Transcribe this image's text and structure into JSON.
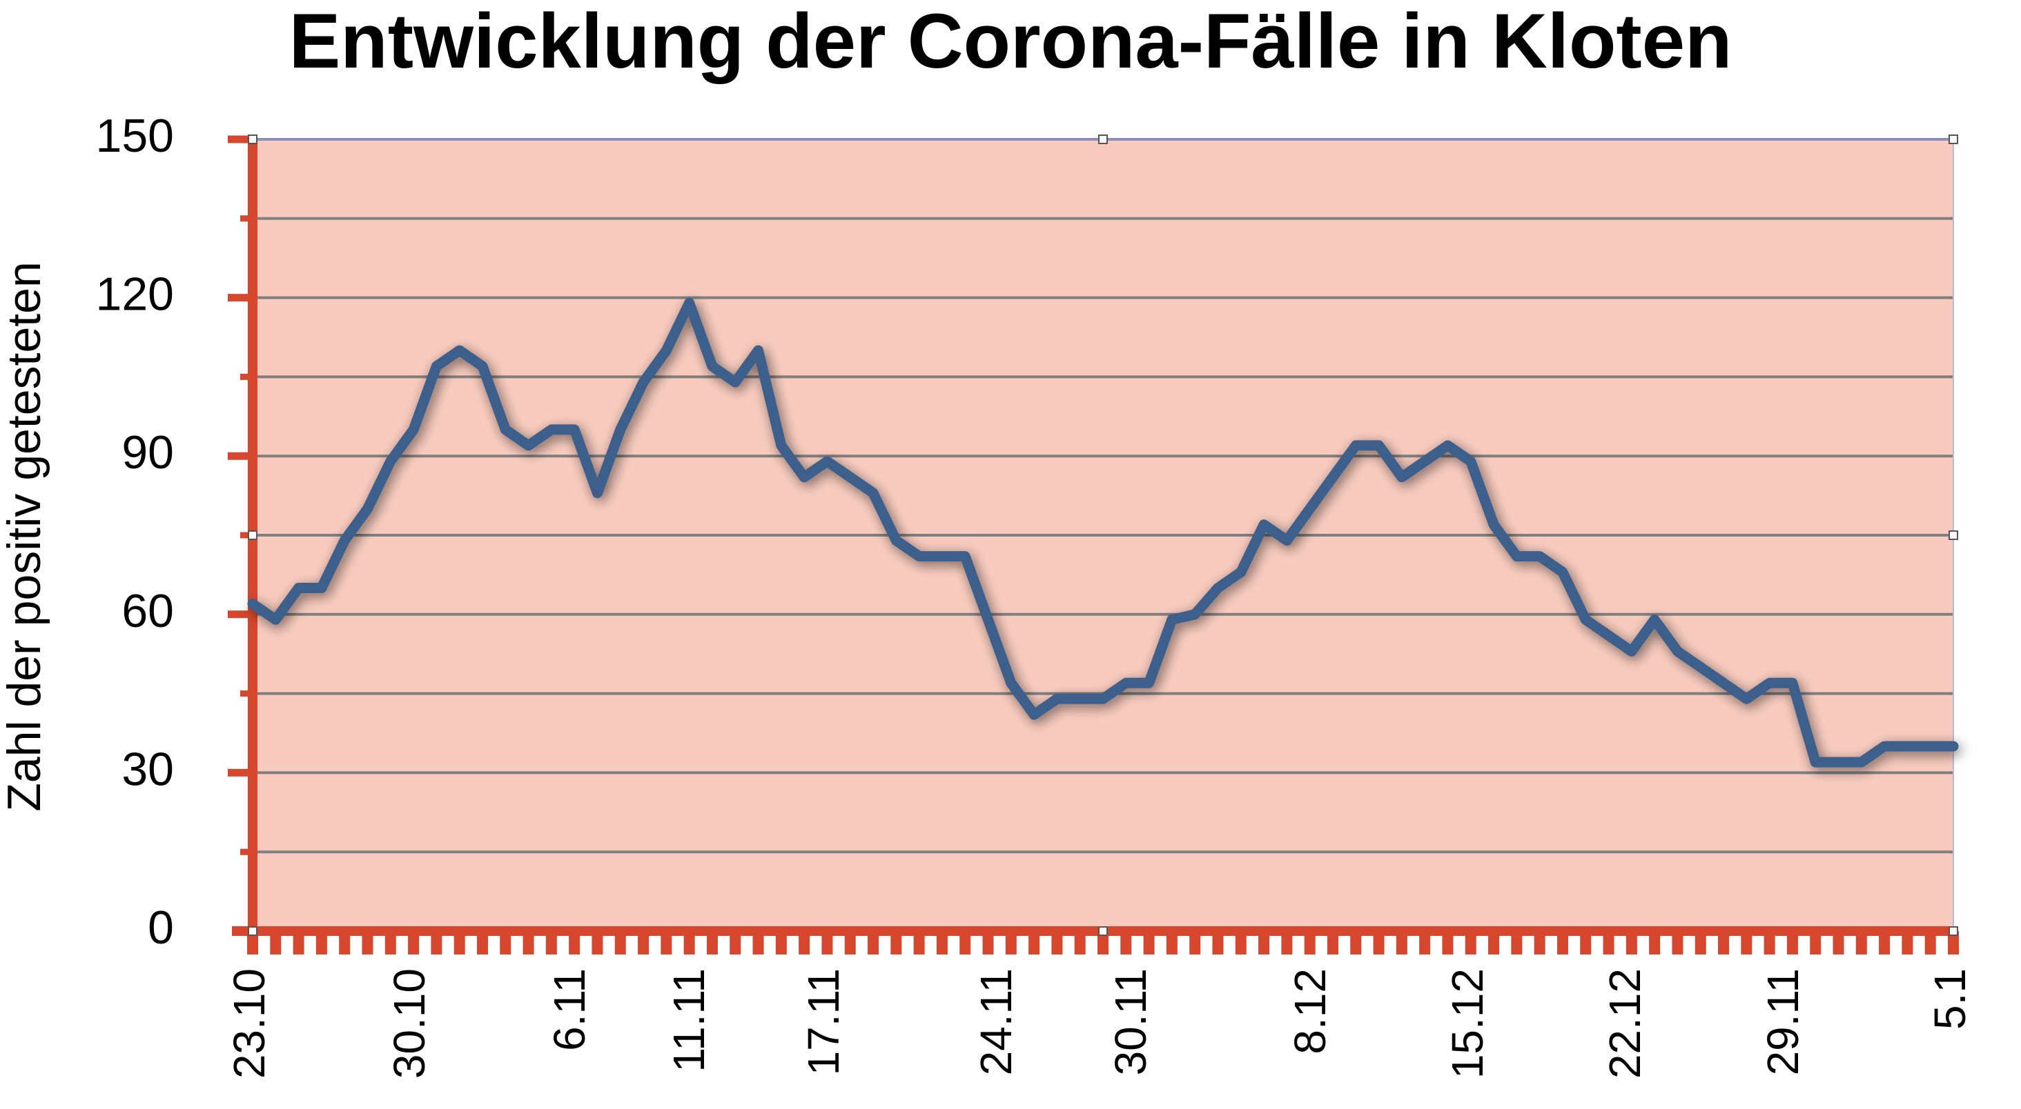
{
  "chart_data": {
    "type": "line",
    "title": "Entwicklung der Corona-Fälle in Kloten",
    "xlabel": "",
    "ylabel": "Zahl der positiv getesteten",
    "ylim": [
      0,
      150
    ],
    "yticks": [
      0,
      30,
      60,
      90,
      120,
      150
    ],
    "grid": true,
    "x_tick_labels": [
      "23.10",
      "30.10",
      "6.11",
      "11.11",
      "17.11",
      "24.11",
      "30.11",
      "8.12",
      "15.12",
      "22.12",
      "29.11",
      "5.1"
    ],
    "series": [
      {
        "values": [
          62,
          59,
          65,
          65,
          74,
          80,
          89,
          95,
          107,
          110,
          107,
          95,
          92,
          95,
          95,
          83,
          95,
          104,
          110,
          119,
          107,
          104,
          110,
          92,
          86,
          89,
          86,
          83,
          74,
          71,
          71,
          71,
          59,
          47,
          41,
          44,
          44,
          44,
          47,
          47,
          59,
          60,
          65,
          68,
          77,
          74,
          80,
          86,
          92,
          92,
          86,
          89,
          92,
          89,
          77,
          71,
          71,
          68,
          59,
          56,
          53,
          59,
          53,
          50,
          47,
          44,
          47,
          47,
          32,
          32,
          32,
          35,
          35,
          35,
          35
        ]
      }
    ],
    "colors": {
      "plot_background": "#f8cbbe",
      "line": "#3e5f8c",
      "axis": "#d6472d",
      "gridline": "#7f7f7f"
    }
  }
}
